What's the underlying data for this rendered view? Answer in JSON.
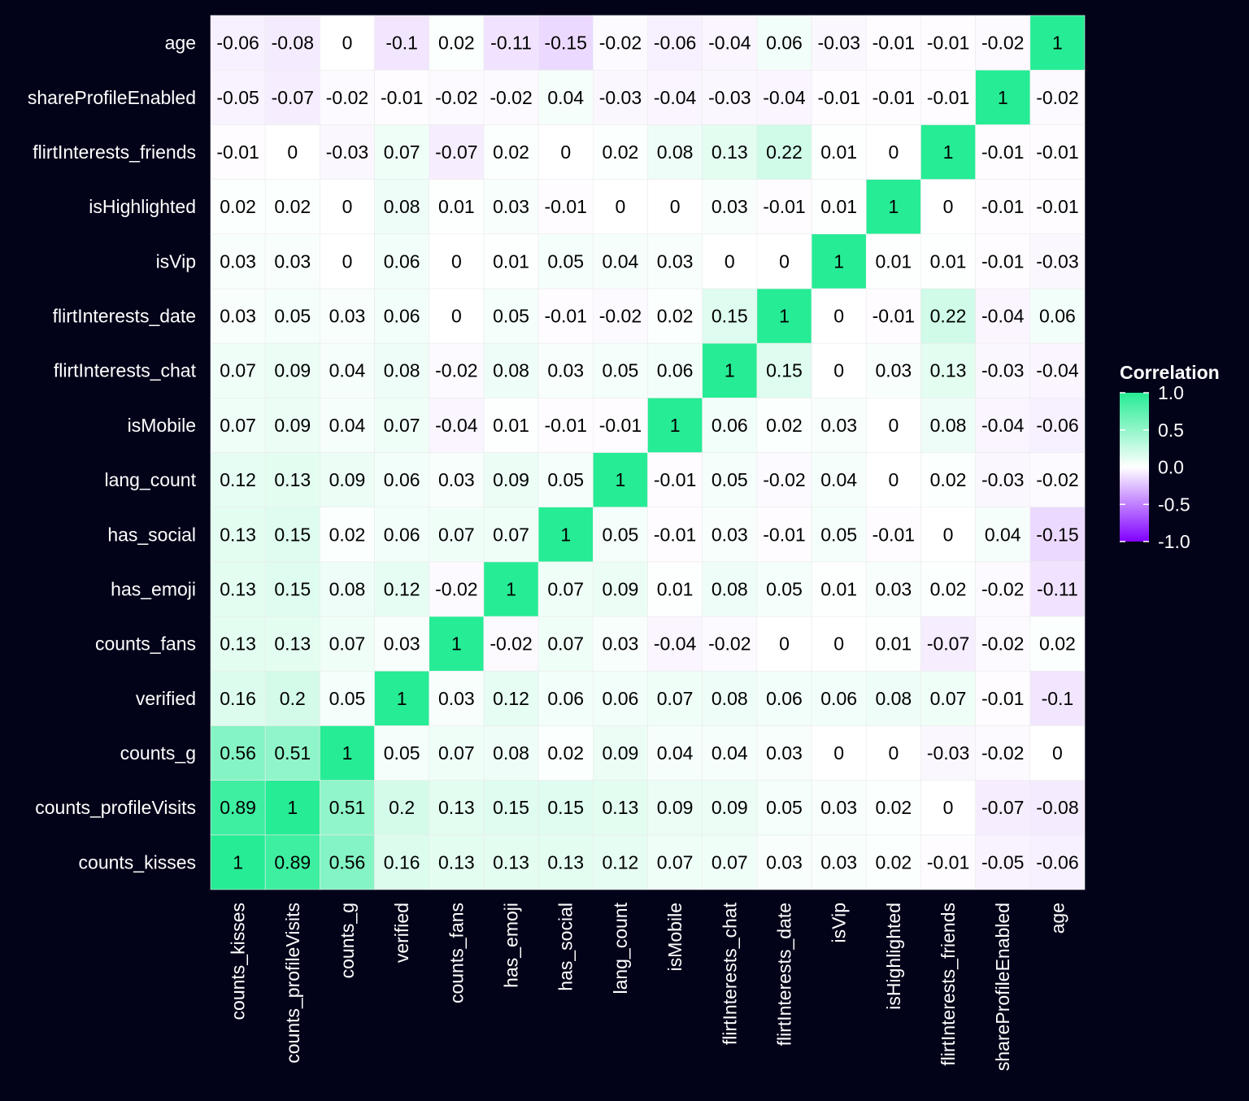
{
  "chart_data": {
    "type": "heatmap",
    "title": "",
    "xlabel": "",
    "ylabel": "",
    "variables": [
      "counts_kisses",
      "counts_profileVisits",
      "counts_g",
      "verified",
      "counts_fans",
      "has_emoji",
      "has_social",
      "lang_count",
      "isMobile",
      "flirtInterests_chat",
      "flirtInterests_date",
      "isVip",
      "isHighlighted",
      "flirtInterests_friends",
      "shareProfileEnabled",
      "age"
    ],
    "matrix": [
      [
        1,
        0.89,
        0.56,
        0.16,
        0.13,
        0.13,
        0.13,
        0.12,
        0.07,
        0.07,
        0.03,
        0.03,
        0.02,
        -0.01,
        -0.05,
        -0.06
      ],
      [
        0.89,
        1,
        0.51,
        0.2,
        0.13,
        0.15,
        0.15,
        0.13,
        0.09,
        0.09,
        0.05,
        0.03,
        0.02,
        0,
        -0.07,
        -0.08
      ],
      [
        0.56,
        0.51,
        1,
        0.05,
        0.07,
        0.08,
        0.02,
        0.09,
        0.04,
        0.04,
        0.03,
        0,
        0,
        -0.03,
        -0.02,
        0
      ],
      [
        0.16,
        0.2,
        0.05,
        1,
        0.03,
        0.12,
        0.06,
        0.06,
        0.07,
        0.08,
        0.06,
        0.06,
        0.08,
        0.07,
        -0.01,
        -0.1
      ],
      [
        0.13,
        0.13,
        0.07,
        0.03,
        1,
        -0.02,
        0.07,
        0.03,
        -0.04,
        -0.02,
        0,
        0,
        0.01,
        -0.07,
        -0.02,
        0.02
      ],
      [
        0.13,
        0.15,
        0.08,
        0.12,
        -0.02,
        1,
        0.07,
        0.09,
        0.01,
        0.08,
        0.05,
        0.01,
        0.03,
        0.02,
        -0.02,
        -0.11
      ],
      [
        0.13,
        0.15,
        0.02,
        0.06,
        0.07,
        0.07,
        1,
        0.05,
        -0.01,
        0.03,
        -0.01,
        0.05,
        -0.01,
        0,
        0.04,
        -0.15
      ],
      [
        0.12,
        0.13,
        0.09,
        0.06,
        0.03,
        0.09,
        0.05,
        1,
        -0.01,
        0.05,
        -0.02,
        0.04,
        0,
        0.02,
        -0.03,
        -0.02
      ],
      [
        0.07,
        0.09,
        0.04,
        0.07,
        -0.04,
        0.01,
        -0.01,
        -0.01,
        1,
        0.06,
        0.02,
        0.03,
        0,
        0.08,
        -0.04,
        -0.06
      ],
      [
        0.07,
        0.09,
        0.04,
        0.08,
        -0.02,
        0.08,
        0.03,
        0.05,
        0.06,
        1,
        0.15,
        0,
        0.03,
        0.13,
        -0.03,
        -0.04
      ],
      [
        0.03,
        0.05,
        0.03,
        0.06,
        0,
        0.05,
        -0.01,
        -0.02,
        0.02,
        0.15,
        1,
        0,
        -0.01,
        0.22,
        -0.04,
        0.06
      ],
      [
        0.03,
        0.03,
        0,
        0.06,
        0,
        0.01,
        0.05,
        0.04,
        0.03,
        0,
        0,
        1,
        0.01,
        0.01,
        -0.01,
        -0.03
      ],
      [
        0.02,
        0.02,
        0,
        0.08,
        0.01,
        0.03,
        -0.01,
        0,
        0,
        0.03,
        -0.01,
        0.01,
        1,
        0,
        -0.01,
        -0.01
      ],
      [
        -0.01,
        0,
        -0.03,
        0.07,
        -0.07,
        0.02,
        0,
        0.02,
        0.08,
        0.13,
        0.22,
        0.01,
        0,
        1,
        -0.01,
        -0.01
      ],
      [
        -0.05,
        -0.07,
        -0.02,
        -0.01,
        -0.02,
        -0.02,
        0.04,
        -0.03,
        -0.04,
        -0.03,
        -0.04,
        -0.01,
        -0.01,
        -0.01,
        1,
        -0.02
      ],
      [
        -0.06,
        -0.08,
        0,
        -0.1,
        0.02,
        -0.11,
        -0.15,
        -0.02,
        -0.06,
        -0.04,
        0.06,
        -0.03,
        -0.01,
        -0.01,
        -0.02,
        1
      ]
    ],
    "value_range": [
      -1,
      1
    ],
    "legend": {
      "title": "Correlation",
      "position": "right",
      "ticks": [
        "1.0",
        "0.5",
        "0.0",
        "-0.5",
        "-1.0"
      ],
      "tick_values": [
        1,
        0.5,
        0,
        -0.5,
        -1
      ]
    },
    "colors": {
      "high": "#26EC95",
      "mid": "#FFFFFF",
      "low": "#8000FF",
      "background": "#020319",
      "label": "#FFFFFF",
      "cell_text": "#000000",
      "grid": "#EBEBEB"
    }
  }
}
